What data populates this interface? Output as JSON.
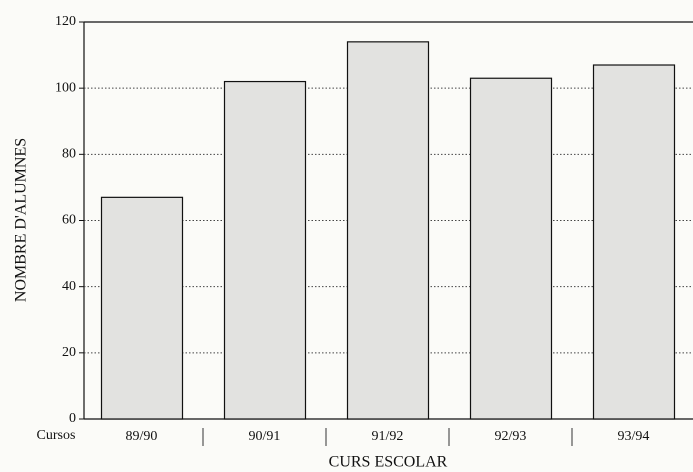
{
  "chart_data": {
    "type": "bar",
    "y_label": "NOMBRE D'ALUMNES",
    "x_label": "CURS ESCOLAR",
    "x_header": "Cursos",
    "categories": [
      "89/90",
      "90/91",
      "91/92",
      "92/93",
      "93/94"
    ],
    "values": [
      67,
      102,
      114,
      103,
      107
    ],
    "color": "#e2e2e0",
    "ylim": [
      0,
      120
    ],
    "yticks": [
      0,
      20,
      40,
      60,
      80,
      100,
      120
    ],
    "grid": true
  }
}
